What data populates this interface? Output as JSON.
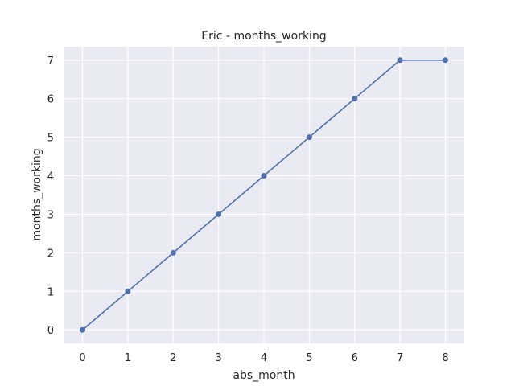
{
  "chart_data": {
    "type": "line",
    "title": "Eric - months_working",
    "xlabel": "abs_month",
    "ylabel": "months_working",
    "x": [
      0,
      1,
      2,
      3,
      4,
      5,
      6,
      7,
      8
    ],
    "series": [
      {
        "values": [
          0,
          1,
          2,
          3,
          4,
          5,
          6,
          7,
          7
        ]
      }
    ],
    "xlim": [
      -0.4,
      8.4
    ],
    "ylim": [
      -0.35,
      7.35
    ],
    "xticks": [
      0,
      1,
      2,
      3,
      4,
      5,
      6,
      7,
      8
    ],
    "yticks": [
      0,
      1,
      2,
      3,
      4,
      5,
      6,
      7
    ],
    "grid": true,
    "markers": true,
    "colors": {
      "plot_background": "#eaeaf2",
      "grid": "#ffffff",
      "line": "#4c72b0",
      "text": "#262626"
    }
  }
}
